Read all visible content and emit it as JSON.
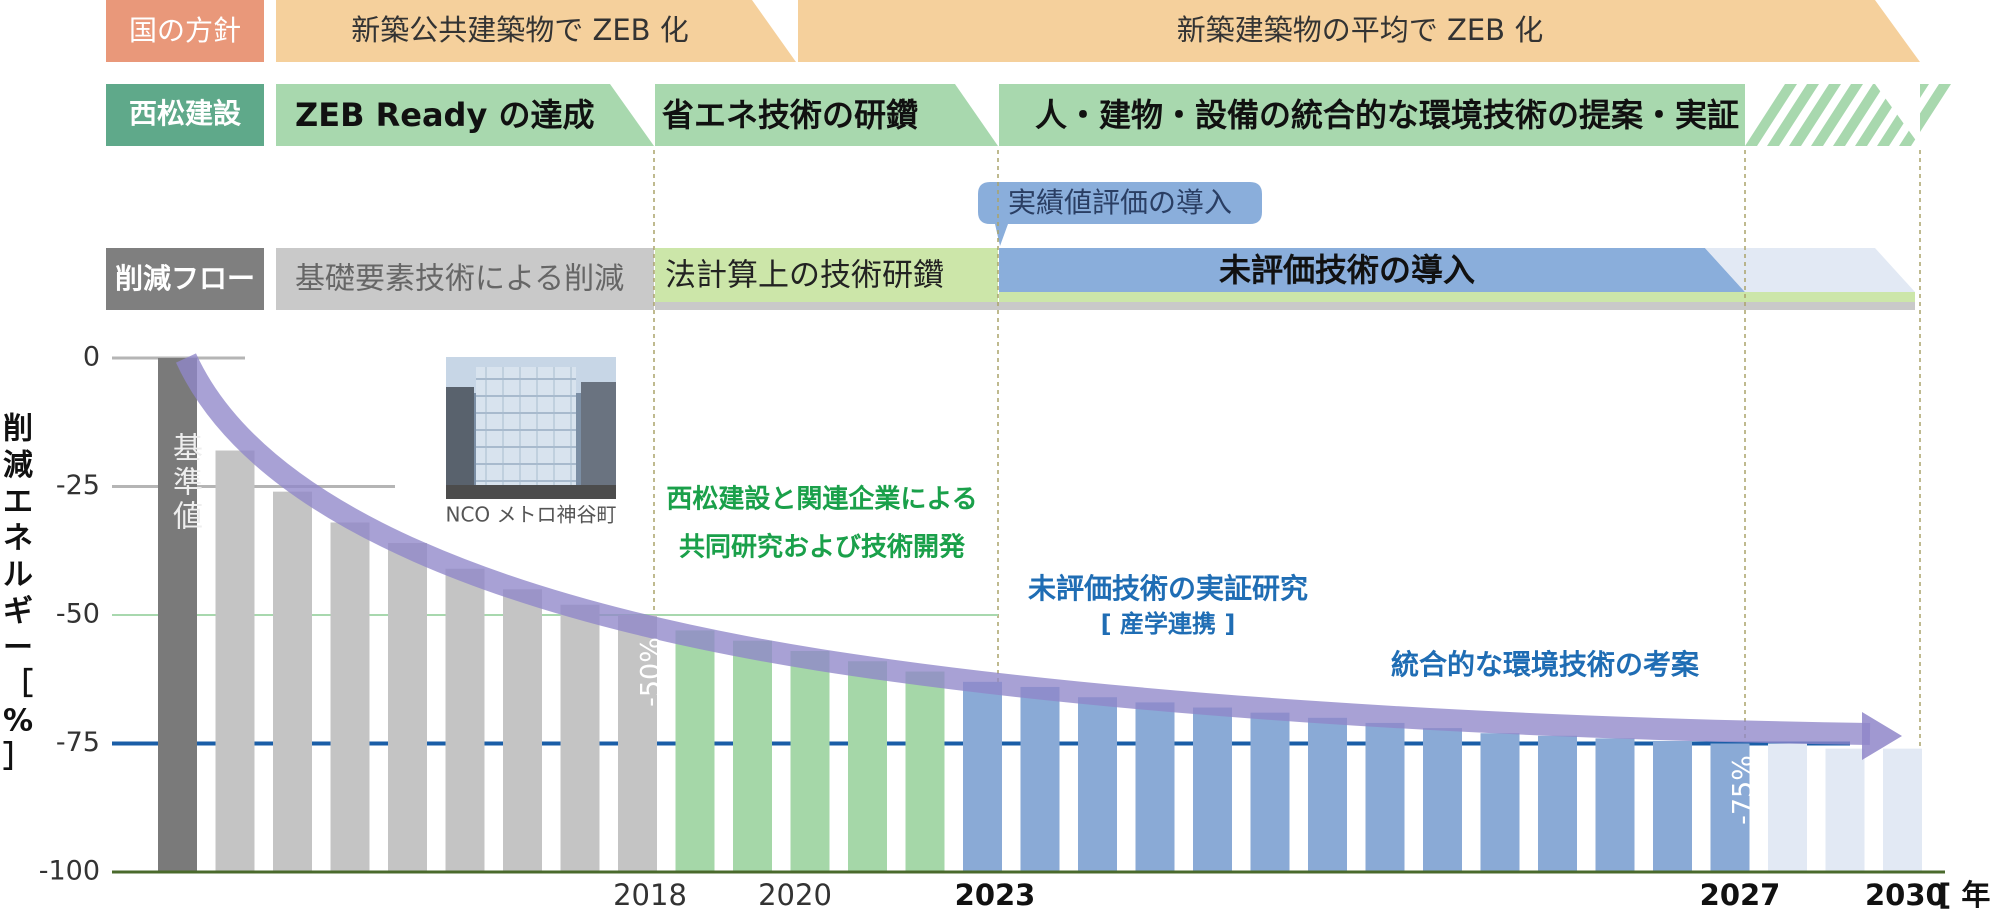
{
  "policy": {
    "label": "国の方針",
    "items": [
      "新築公共建築物で ZEB 化",
      "新築建築物の平均で ZEB 化"
    ]
  },
  "company": {
    "label": "西松建設",
    "items": [
      "ZEB Ready の達成",
      "省エネ技術の研鑽",
      "人・建物・設備の統合的な環境技術の提案・実証"
    ]
  },
  "callout": "実績値評価の導入",
  "flow": {
    "label": "削減フロー",
    "items": [
      "基礎要素技術による削減",
      "法計算上の技術研鑽",
      "未評価技術の導入"
    ]
  },
  "annotations": {
    "baseline": "基準値",
    "photo_caption": "NCO メトロ神谷町",
    "green_text_1": "西松建設と関連企業による",
    "green_text_2": "共同研究および技術開発",
    "blue_text_1": "未評価技術の実証研究",
    "blue_text_2": "[ 産学連携 ]",
    "blue_text_3": "統合的な環境技術の考案",
    "marker_50": "-50%",
    "marker_75": "-75%"
  },
  "colors": {
    "policy_label": "#e9987a",
    "policy_band": "#f5d09c",
    "company_label": "#5fa98a",
    "company_band": "#a8d8ae",
    "flow_label": "#7f7f7f",
    "flow_gray": "#c9c9c9",
    "flow_green": "#cce6a9",
    "flow_blue": "#8aaedb",
    "bar_base": "#7a7a7a",
    "bar_gray": "#c4c4c4",
    "bar_green": "#a5d7a8",
    "bar_blue": "#8aaad6",
    "bar_light": "#e2e9f4",
    "arrow": "#8f86c9",
    "line75": "#1a5ea7",
    "green_text": "#1aa04a",
    "blue_text": "#1f6db4"
  },
  "chart_data": {
    "type": "bar",
    "ylabel": "削減エネルギー［%］",
    "xlabel_unit": "[ 年 ]",
    "ylim": [
      -100,
      0
    ],
    "yticks": [
      0,
      -25,
      -50,
      -75,
      -100
    ],
    "xtick_labels": [
      "2018",
      "2020",
      "2023",
      "2027",
      "2030"
    ],
    "values": [
      0,
      -18,
      -26,
      -32,
      -36,
      -41,
      -45,
      -48,
      -50,
      -53,
      -55,
      -57,
      -59,
      -61,
      -63,
      -64,
      -66,
      -67,
      -68,
      -69,
      -70,
      -71,
      -72,
      -73,
      -73.5,
      -74,
      -74.5,
      -75,
      -75,
      -76,
      -76
    ],
    "bar_groups": [
      "base",
      "gray",
      "gray",
      "gray",
      "gray",
      "gray",
      "gray",
      "gray",
      "gray",
      "green",
      "green",
      "green",
      "green",
      "green",
      "blue",
      "blue",
      "blue",
      "blue",
      "blue",
      "blue",
      "blue",
      "blue",
      "blue",
      "blue",
      "blue",
      "blue",
      "blue",
      "blue",
      "light",
      "light",
      "light"
    ],
    "reference_lines": [
      -50,
      -75
    ],
    "trend": "decreasing curve from 0 to -75"
  }
}
